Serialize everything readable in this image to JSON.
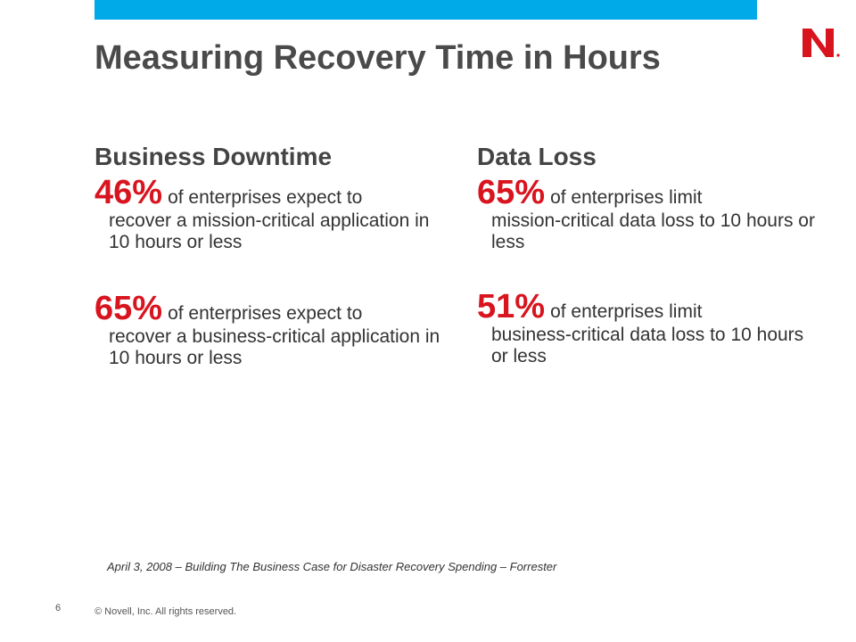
{
  "header": {
    "title": "Measuring Recovery Time in Hours"
  },
  "colors": {
    "accent_bar": "#00a9e8",
    "brand_red": "#d8141e"
  },
  "logo": {
    "icon": "novell-n-logo"
  },
  "columns": [
    {
      "heading": "Business Downtime",
      "stats": [
        {
          "percent": "46%",
          "lead": "of enterprises expect to",
          "rest": "recover a mission-critical application in 10 hours or less"
        },
        {
          "percent": "65%",
          "lead": "of enterprises expect to",
          "rest": "recover a business-critical application in 10 hours or less"
        }
      ]
    },
    {
      "heading": "Data Loss",
      "stats": [
        {
          "percent": "65%",
          "lead": "of enterprises limit",
          "rest": "mission-critical data loss to 10 hours or less"
        },
        {
          "percent": "51%",
          "lead": "of enterprises limit",
          "rest": "business-critical data loss to 10 hours or less"
        }
      ]
    }
  ],
  "footer": {
    "source": "April 3, 2008 – Building The Business Case for Disaster Recovery Spending – Forrester",
    "page_number": "6",
    "copyright": "© Novell, Inc.  All rights reserved."
  }
}
